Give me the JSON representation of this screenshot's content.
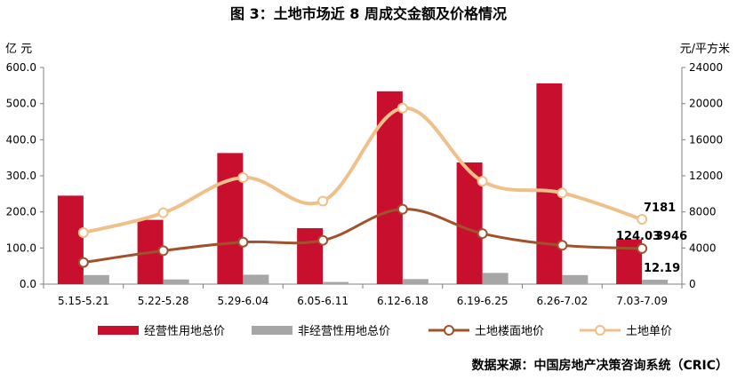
{
  "title": "图 3：土地市场近 8 周成交金额及价格情况",
  "source": "数据来源：中国房地产决策咨询系统（CRIC）",
  "left_unit": "亿 元",
  "right_unit": "元/平方米",
  "chart_data": {
    "type": "bar",
    "categories": [
      "5.15-5.21",
      "5.22-5.28",
      "5.29-6.04",
      "6.05-6.11",
      "6.12-6.18",
      "6.19-6.25",
      "6.26-7.02",
      "7.03-7.09"
    ],
    "ylim": [
      0,
      600
    ],
    "y2lim": [
      0,
      24000
    ],
    "yticks": [
      "0.0",
      "100.0",
      "200.0",
      "300.0",
      "400.0",
      "500.0",
      "600.0"
    ],
    "y2ticks": [
      "0",
      "4000",
      "8000",
      "12000",
      "16000",
      "20000",
      "24000"
    ],
    "series": [
      {
        "name": "经营性用地总价",
        "kind": "bar",
        "axis": "left",
        "color": "#c8102e",
        "values": [
          245,
          178,
          363,
          155,
          534,
          337,
          556,
          124.03
        ]
      },
      {
        "name": "非经营性用地总价",
        "kind": "bar",
        "axis": "left",
        "color": "#a6a6a6",
        "values": [
          25,
          13,
          26,
          6,
          14,
          31,
          25,
          12.19
        ]
      },
      {
        "name": "土地楼面地价",
        "kind": "line",
        "axis": "right",
        "color": "#a0522d",
        "values": [
          2400,
          3700,
          4650,
          4850,
          8300,
          5600,
          4300,
          3946
        ]
      },
      {
        "name": "土地单价",
        "kind": "line",
        "axis": "right",
        "color": "#f0c08a",
        "values": [
          5700,
          7900,
          11800,
          9200,
          19500,
          11400,
          10100,
          7181
        ]
      }
    ],
    "data_labels": [
      "124.03",
      "3946",
      "7181",
      "12.19"
    ],
    "grid": false,
    "legend_position": "bottom"
  }
}
